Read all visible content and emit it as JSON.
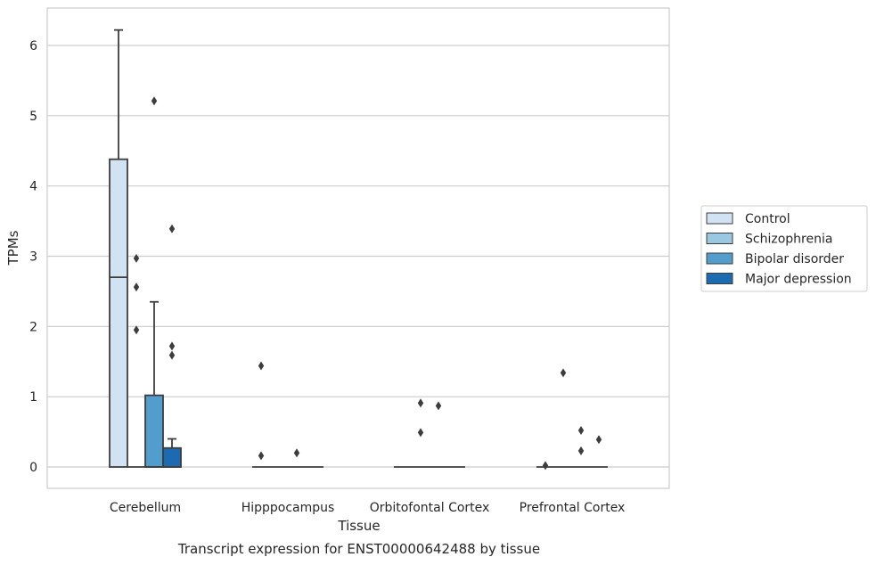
{
  "chart_data": {
    "type": "box",
    "xlabel": "Tissue",
    "ylabel": "TPMs",
    "caption": "Transcript expression for ENST00000642488 by tissue",
    "ylim": [
      -0.3,
      6.5
    ],
    "yticks": [
      0,
      1,
      2,
      3,
      4,
      5,
      6
    ],
    "grid": true,
    "legend_position": "right",
    "categories": [
      "Cerebellum",
      "Hipppocampus",
      "Orbitofontal Cortex",
      "Prefrontal Cortex"
    ],
    "series": [
      {
        "name": "Control",
        "color": "#d1e2f2",
        "boxes": [
          {
            "whislo": 0,
            "q1": 0,
            "med": 2.7,
            "q3": 4.38,
            "whishi": 6.22,
            "fliers": []
          },
          {
            "whislo": 0,
            "q1": 0,
            "med": 0,
            "q3": 0,
            "whishi": 0,
            "fliers": [
              1.44,
              0.16
            ]
          },
          {
            "whislo": 0,
            "q1": 0,
            "med": 0,
            "q3": 0,
            "whishi": 0,
            "fliers": []
          },
          {
            "whislo": 0,
            "q1": 0,
            "med": 0,
            "q3": 0,
            "whishi": 0,
            "fliers": [
              0.02
            ]
          }
        ]
      },
      {
        "name": "Schizophrenia",
        "color": "#9ac8e0",
        "boxes": [
          {
            "whislo": 0,
            "q1": 0,
            "med": 0,
            "q3": 0,
            "whishi": 0,
            "fliers": [
              2.97,
              2.56,
              1.95
            ]
          },
          {
            "whislo": 0,
            "q1": 0,
            "med": 0,
            "q3": 0,
            "whishi": 0,
            "fliers": []
          },
          {
            "whislo": 0,
            "q1": 0,
            "med": 0,
            "q3": 0,
            "whishi": 0,
            "fliers": [
              0.91,
              0.49
            ]
          },
          {
            "whislo": 0,
            "q1": 0,
            "med": 0,
            "q3": 0,
            "whishi": 0,
            "fliers": [
              1.34
            ]
          }
        ]
      },
      {
        "name": "Bipolar disorder",
        "color": "#529dcc",
        "boxes": [
          {
            "whislo": 0,
            "q1": 0,
            "med": 0,
            "q3": 1.02,
            "whishi": 2.35,
            "fliers": [
              5.21
            ]
          },
          {
            "whislo": 0,
            "q1": 0,
            "med": 0,
            "q3": 0,
            "whishi": 0,
            "fliers": [
              0.2
            ]
          },
          {
            "whislo": 0,
            "q1": 0,
            "med": 0,
            "q3": 0,
            "whishi": 0,
            "fliers": [
              0.87
            ]
          },
          {
            "whislo": 0,
            "q1": 0,
            "med": 0,
            "q3": 0,
            "whishi": 0,
            "fliers": [
              0.52,
              0.23
            ]
          }
        ]
      },
      {
        "name": "Major depression",
        "color": "#1c6aaf",
        "boxes": [
          {
            "whislo": 0,
            "q1": 0,
            "med": 0,
            "q3": 0.27,
            "whishi": 0.4,
            "fliers": [
              3.39,
              1.72,
              1.59
            ]
          },
          {
            "whislo": 0,
            "q1": 0,
            "med": 0,
            "q3": 0,
            "whishi": 0,
            "fliers": []
          },
          {
            "whislo": 0,
            "q1": 0,
            "med": 0,
            "q3": 0,
            "whishi": 0,
            "fliers": []
          },
          {
            "whislo": 0,
            "q1": 0,
            "med": 0,
            "q3": 0,
            "whishi": 0,
            "fliers": [
              0.39
            ]
          }
        ]
      }
    ]
  }
}
